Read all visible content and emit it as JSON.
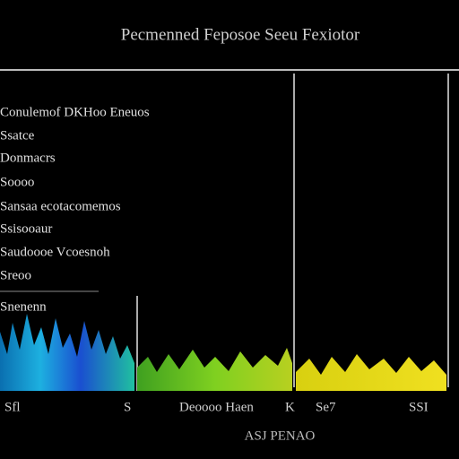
{
  "header": {
    "title": "Pecmenned Feposoe Seeu Fexiotor"
  },
  "items": [
    "Conulemof DKHoo Eneuos",
    "Ssatce",
    "Donmacrs",
    "Soooo",
    "Sansaa ecotacomemos",
    "Ssisooaur",
    "Saudoooe Vcoesnoh",
    "Sreoo",
    "Snenenn"
  ],
  "labels": [
    "Sfl",
    "S",
    "Deoooo Haen",
    "K",
    "Se7",
    "SSI"
  ],
  "footer": {
    "text": "ASJ PENAO"
  }
}
